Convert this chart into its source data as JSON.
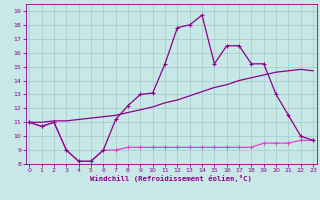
{
  "line1_x": [
    0,
    1,
    2,
    3,
    4,
    5,
    6,
    7,
    8,
    9,
    10,
    11,
    12,
    13,
    14,
    15,
    16,
    17,
    18,
    19,
    20,
    21,
    22,
    23
  ],
  "line1_y": [
    11,
    10.7,
    11,
    9,
    8.2,
    8.2,
    9,
    9,
    9.2,
    9.2,
    9.2,
    9.2,
    9.2,
    9.2,
    9.2,
    9.2,
    9.2,
    9.2,
    9.2,
    9.5,
    9.5,
    9.5,
    9.7,
    9.7
  ],
  "line2_x": [
    0,
    1,
    2,
    3,
    4,
    5,
    6,
    7,
    8,
    9,
    10,
    11,
    12,
    13,
    14,
    15,
    16,
    17,
    18,
    19,
    20,
    21,
    22,
    23
  ],
  "line2_y": [
    11,
    11.0,
    11.1,
    11.1,
    11.2,
    11.3,
    11.4,
    11.5,
    11.7,
    11.9,
    12.1,
    12.4,
    12.6,
    12.9,
    13.2,
    13.5,
    13.7,
    14.0,
    14.2,
    14.4,
    14.6,
    14.7,
    14.8,
    14.7
  ],
  "line3_x": [
    0,
    1,
    2,
    3,
    4,
    5,
    6,
    7,
    8,
    9,
    10,
    11,
    12,
    13,
    14,
    15,
    16,
    17,
    18,
    19,
    20,
    21,
    22,
    23
  ],
  "line3_y": [
    11,
    10.7,
    11,
    9,
    8.2,
    8.2,
    9,
    11.2,
    12.2,
    13.0,
    13.1,
    15.2,
    17.8,
    18.0,
    18.7,
    15.2,
    16.5,
    16.5,
    15.2,
    15.2,
    13,
    11.5,
    10,
    9.7
  ],
  "line_color": "#8b008b",
  "line_color2": "#dd44cc",
  "bg_color": "#c8e8e8",
  "grid_color": "#aacece",
  "xlabel": "Windchill (Refroidissement éolien,°C)",
  "xlim": [
    -0.3,
    23.3
  ],
  "ylim": [
    8,
    19.5
  ],
  "yticks": [
    8,
    9,
    10,
    11,
    12,
    13,
    14,
    15,
    16,
    17,
    18,
    19
  ],
  "xticks": [
    0,
    1,
    2,
    3,
    4,
    5,
    6,
    7,
    8,
    9,
    10,
    11,
    12,
    13,
    14,
    15,
    16,
    17,
    18,
    19,
    20,
    21,
    22,
    23
  ]
}
